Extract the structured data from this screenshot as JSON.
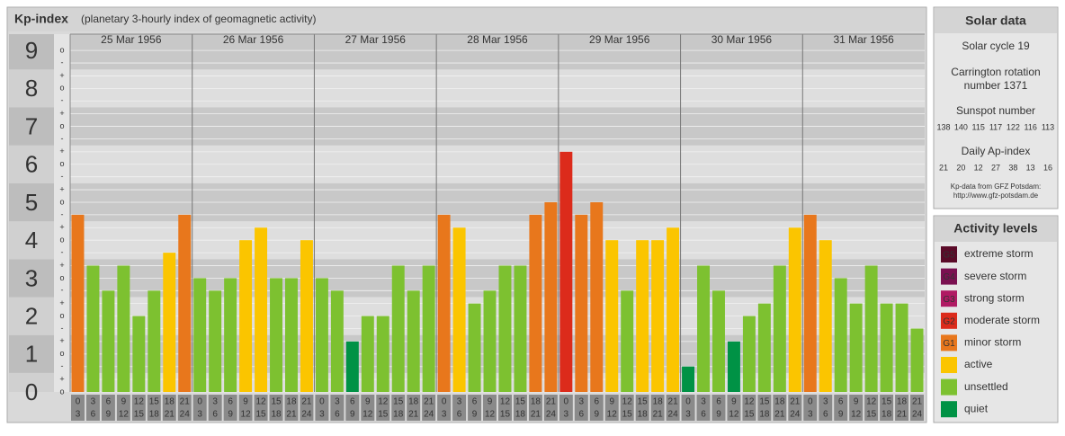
{
  "title": "Kp-index",
  "subtitle": "(planetary 3-hourly index of geomagnetic activity)",
  "chart_data": {
    "type": "bar",
    "days": [
      "25 Mar 1956",
      "26 Mar 1956",
      "27 Mar 1956",
      "28 Mar 1956",
      "29 Mar 1956",
      "30 Mar 1956",
      "31 Mar 1956"
    ],
    "hour_labels": [
      [
        "0",
        "3"
      ],
      [
        "3",
        "6"
      ],
      [
        "6",
        "9"
      ],
      [
        "9",
        "12"
      ],
      [
        "12",
        "15"
      ],
      [
        "15",
        "18"
      ],
      [
        "18",
        "21"
      ],
      [
        "21",
        "24"
      ]
    ],
    "values": [
      4.67,
      3.33,
      2.67,
      3.33,
      2.0,
      2.67,
      3.67,
      4.67,
      3.0,
      2.67,
      3.0,
      4.0,
      4.33,
      3.0,
      3.0,
      4.0,
      3.0,
      2.67,
      1.33,
      2.0,
      2.0,
      3.33,
      2.67,
      3.33,
      4.67,
      4.33,
      2.33,
      2.67,
      3.33,
      3.33,
      4.67,
      5.0,
      6.33,
      4.67,
      5.0,
      4.0,
      2.67,
      4.0,
      4.0,
      4.33,
      0.67,
      3.33,
      2.67,
      1.33,
      2.0,
      2.33,
      3.33,
      4.33,
      4.67,
      4.0,
      3.0,
      2.33,
      3.33,
      2.33,
      2.33,
      1.67
    ],
    "colors": [
      "#e8771c",
      "#7dc130",
      "#7dc130",
      "#7dc130",
      "#7dc130",
      "#7dc130",
      "#fbc500",
      "#e8771c",
      "#7dc130",
      "#7dc130",
      "#7dc130",
      "#fbc500",
      "#fbc500",
      "#7dc130",
      "#7dc130",
      "#fbc500",
      "#7dc130",
      "#7dc130",
      "#009245",
      "#7dc130",
      "#7dc130",
      "#7dc130",
      "#7dc130",
      "#7dc130",
      "#e8771c",
      "#fbc500",
      "#7dc130",
      "#7dc130",
      "#7dc130",
      "#7dc130",
      "#e8771c",
      "#e8771c",
      "#dc2b1b",
      "#e8771c",
      "#e8771c",
      "#fbc500",
      "#7dc130",
      "#fbc500",
      "#fbc500",
      "#fbc500",
      "#009245",
      "#7dc130",
      "#7dc130",
      "#009245",
      "#7dc130",
      "#7dc130",
      "#7dc130",
      "#fbc500",
      "#e8771c",
      "#fbc500",
      "#7dc130",
      "#7dc130",
      "#7dc130",
      "#7dc130",
      "#7dc130",
      "#7dc130"
    ],
    "ylim": [
      0,
      9.43
    ],
    "yticks": [
      0,
      1,
      2,
      3,
      4,
      5,
      6,
      7,
      8,
      9
    ],
    "minor_yticks": [
      {
        "value": 0,
        "label": "o"
      },
      {
        "value": 0.33,
        "label": "+"
      },
      {
        "value": 0.67,
        "label": "-"
      },
      {
        "value": 1,
        "label": "o"
      },
      {
        "value": 1.33,
        "label": "+"
      },
      {
        "value": 1.67,
        "label": "-"
      },
      {
        "value": 2,
        "label": "o"
      },
      {
        "value": 2.33,
        "label": "+"
      },
      {
        "value": 2.67,
        "label": "-"
      },
      {
        "value": 3,
        "label": "o"
      },
      {
        "value": 3.33,
        "label": "+"
      },
      {
        "value": 3.67,
        "label": "-"
      },
      {
        "value": 4,
        "label": "o"
      },
      {
        "value": 4.33,
        "label": "+"
      },
      {
        "value": 4.67,
        "label": "-"
      },
      {
        "value": 5,
        "label": "o"
      },
      {
        "value": 5.33,
        "label": "+"
      },
      {
        "value": 5.67,
        "label": "-"
      },
      {
        "value": 6,
        "label": "o"
      },
      {
        "value": 6.33,
        "label": "+"
      },
      {
        "value": 6.67,
        "label": "-"
      },
      {
        "value": 7,
        "label": "o"
      },
      {
        "value": 7.33,
        "label": "+"
      },
      {
        "value": 7.67,
        "label": "-"
      },
      {
        "value": 8,
        "label": "o"
      },
      {
        "value": 8.33,
        "label": "+"
      },
      {
        "value": 8.67,
        "label": "-"
      },
      {
        "value": 9,
        "label": "o"
      }
    ],
    "grid": true
  },
  "solar_data": {
    "title": "Solar data",
    "cycle": "Solar cycle 19",
    "carrington": [
      "Carrington rotation",
      "number 1371"
    ],
    "sunspot_title": "Sunspot number",
    "sunspots": [
      138,
      140,
      115,
      117,
      122,
      116,
      113
    ],
    "ap_title": "Daily Ap-index",
    "ap": [
      21,
      20,
      12,
      27,
      38,
      13,
      16
    ],
    "source": [
      "Kp-data from GFZ Potsdam:",
      "http://www.gfz-potsdam.de"
    ]
  },
  "legend": {
    "title": "Activity levels",
    "items": [
      {
        "badge": "G5",
        "label": "extreme storm",
        "color": "#5a0a28"
      },
      {
        "badge": "G4",
        "label": "severe storm",
        "color": "#7a1050"
      },
      {
        "badge": "G3",
        "label": "strong storm",
        "color": "#b01a63"
      },
      {
        "badge": "G2",
        "label": "moderate storm",
        "color": "#dc2b1b"
      },
      {
        "badge": "G1",
        "label": "minor storm",
        "color": "#e8771c"
      },
      {
        "label": "active",
        "color": "#fbc500"
      },
      {
        "label": "unsettled",
        "color": "#7dc130"
      },
      {
        "label": "quiet",
        "color": "#009245"
      }
    ]
  }
}
